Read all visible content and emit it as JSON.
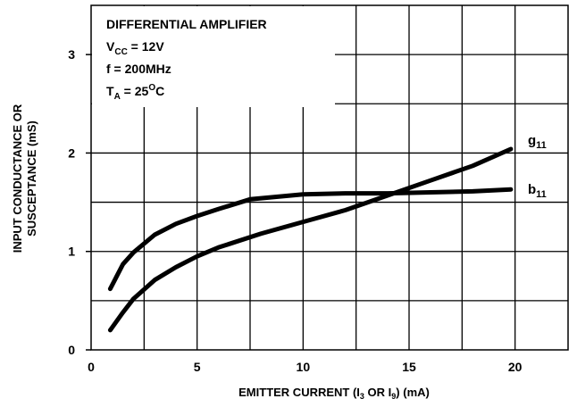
{
  "chart_data": {
    "type": "line",
    "title": "DIFFERENTIAL AMPLIFIER",
    "conditions": {
      "vcc": {
        "main": "V",
        "sub": "CC",
        "rest": " = 12V"
      },
      "freq": {
        "text": "f = 200MHz"
      },
      "ta": {
        "main": "T",
        "sub": "A",
        "mid": " = 25",
        "sup": "O",
        "rest": "C"
      }
    },
    "xlabel": {
      "pre": "EMITTER CURRENT (I",
      "sub1": "3",
      "mid": " OR I",
      "sub2": "9",
      "post": ") (mA)"
    },
    "ylabel_line1": "INPUT CONDUCTANCE OR",
    "ylabel_line2": "SUSCEPTANCE (mS)",
    "xlim": [
      0,
      22.5
    ],
    "ylim": [
      0,
      3.5
    ],
    "x_ticks": [
      "0",
      "5",
      "10",
      "15",
      "20"
    ],
    "y_ticks": [
      "0",
      "1",
      "2",
      "3"
    ],
    "grid": true,
    "series": [
      {
        "name": "g11",
        "label_main": "g",
        "label_sub": "11",
        "x": [
          0.9,
          1.5,
          2.0,
          3.0,
          4.0,
          5.0,
          6.0,
          8.0,
          10.0,
          12.0,
          14.0,
          16.0,
          18.0,
          19.8
        ],
        "y": [
          0.2,
          0.38,
          0.52,
          0.71,
          0.84,
          0.95,
          1.04,
          1.18,
          1.3,
          1.42,
          1.57,
          1.72,
          1.87,
          2.04
        ]
      },
      {
        "name": "b11",
        "label_main": "b",
        "label_sub": "11",
        "x": [
          0.9,
          1.5,
          2.0,
          3.0,
          4.0,
          5.0,
          6.0,
          7.5,
          10.0,
          12.0,
          14.0,
          16.0,
          18.0,
          19.8
        ],
        "y": [
          0.62,
          0.87,
          0.99,
          1.17,
          1.28,
          1.36,
          1.43,
          1.53,
          1.58,
          1.59,
          1.59,
          1.6,
          1.61,
          1.63
        ]
      }
    ]
  }
}
